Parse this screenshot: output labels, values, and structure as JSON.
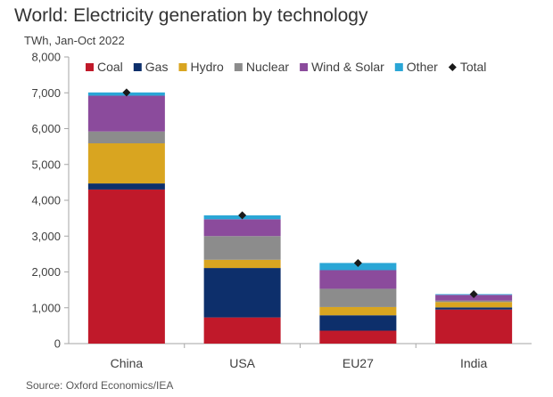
{
  "chart_data": {
    "type": "bar",
    "stacked": true,
    "title": "World: Electricity generation by technology",
    "subtitle": "TWh, Jan-Oct 2022",
    "source": "Source: Oxford Economics/IEA",
    "xlabel": "",
    "ylabel": "",
    "ylim": [
      0,
      8000
    ],
    "yticks": [
      "0",
      "1,000",
      "2,000",
      "3,000",
      "4,000",
      "5,000",
      "6,000",
      "7,000",
      "8,000"
    ],
    "ytick_values": [
      0,
      1000,
      2000,
      3000,
      4000,
      5000,
      6000,
      7000,
      8000
    ],
    "grid": false,
    "legend_position": "top-right",
    "categories": [
      "China",
      "USA",
      "EU27",
      "India"
    ],
    "series": [
      {
        "name": "Coal",
        "color": "#C0192A",
        "values": [
          4300,
          730,
          360,
          950
        ]
      },
      {
        "name": "Gas",
        "color": "#0D2F6B",
        "values": [
          170,
          1380,
          430,
          60
        ]
      },
      {
        "name": "Hydro",
        "color": "#D9A520",
        "values": [
          1120,
          230,
          230,
          150
        ]
      },
      {
        "name": "Nuclear",
        "color": "#8C8C8C",
        "values": [
          330,
          660,
          510,
          40
        ]
      },
      {
        "name": "Wind & Solar",
        "color": "#8B4B9C",
        "values": [
          1000,
          470,
          520,
          160
        ]
      },
      {
        "name": "Other",
        "color": "#2AA6D6",
        "values": [
          90,
          110,
          200,
          20
        ]
      }
    ],
    "total": {
      "name": "Total",
      "color": "#1a1a1a",
      "values": [
        7010,
        3580,
        2250,
        1380
      ]
    }
  }
}
